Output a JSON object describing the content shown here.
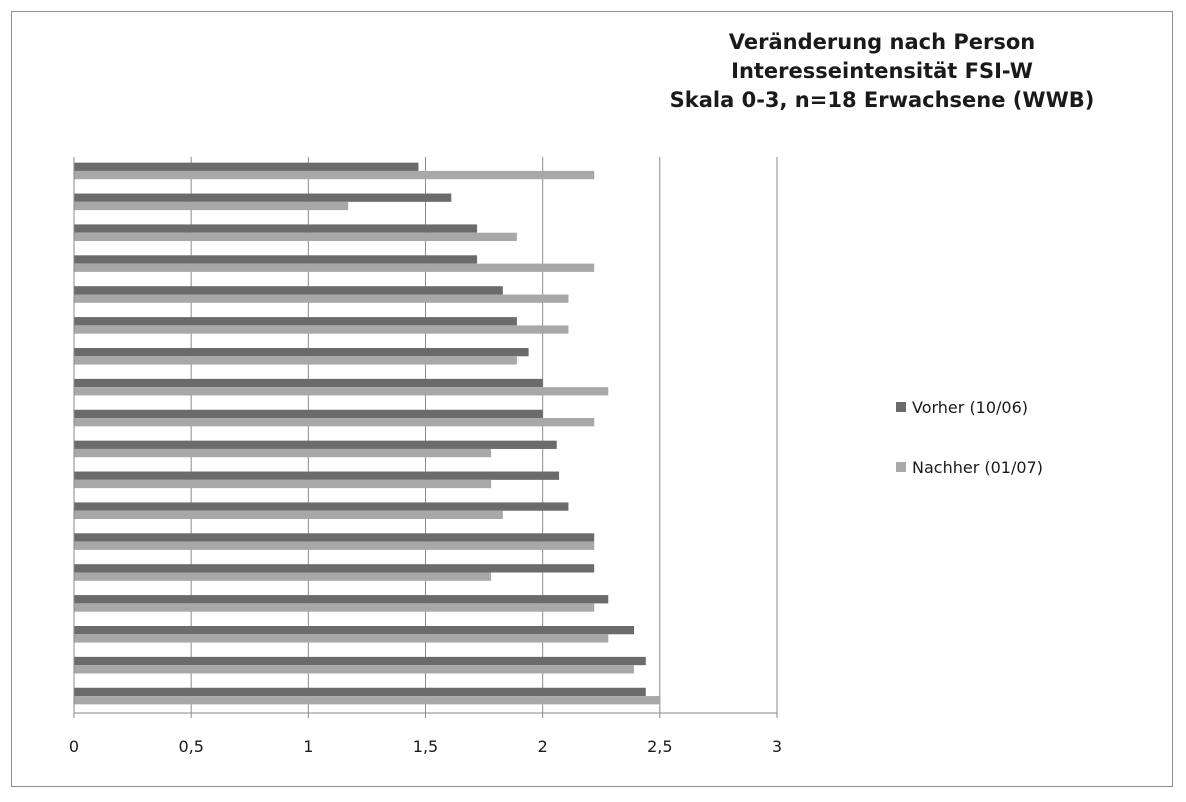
{
  "chart_data": {
    "type": "bar",
    "orientation": "horizontal",
    "title": "Veränderung nach Person\nInteresseintensität FSI-W\nSkala 0-3, n=18 Erwachsene (WWB)",
    "xlabel": "",
    "ylabel": "",
    "xlim": [
      0,
      3
    ],
    "tick_values": [
      0,
      0.5,
      1,
      1.5,
      2,
      2.5,
      3
    ],
    "tick_labels": [
      "0",
      "0,5",
      "1",
      "1,5",
      "2",
      "2,5",
      "3"
    ],
    "grid": "vertical major gridlines",
    "legend_position": "right",
    "category_count": 18,
    "series": [
      {
        "name": "Vorher (10/06)",
        "color": "#6b6b6b",
        "values": [
          1.47,
          1.61,
          1.72,
          1.72,
          1.83,
          1.89,
          1.94,
          2.0,
          2.0,
          2.06,
          2.07,
          2.11,
          2.22,
          2.22,
          2.28,
          2.39,
          2.44,
          2.44
        ]
      },
      {
        "name": "Nachher (01/07)",
        "color": "#a8a8a8",
        "values": [
          2.22,
          1.17,
          1.89,
          2.22,
          2.11,
          2.11,
          1.89,
          2.28,
          2.22,
          1.78,
          1.78,
          1.83,
          2.22,
          1.78,
          2.22,
          2.28,
          2.39,
          2.5
        ]
      }
    ]
  }
}
